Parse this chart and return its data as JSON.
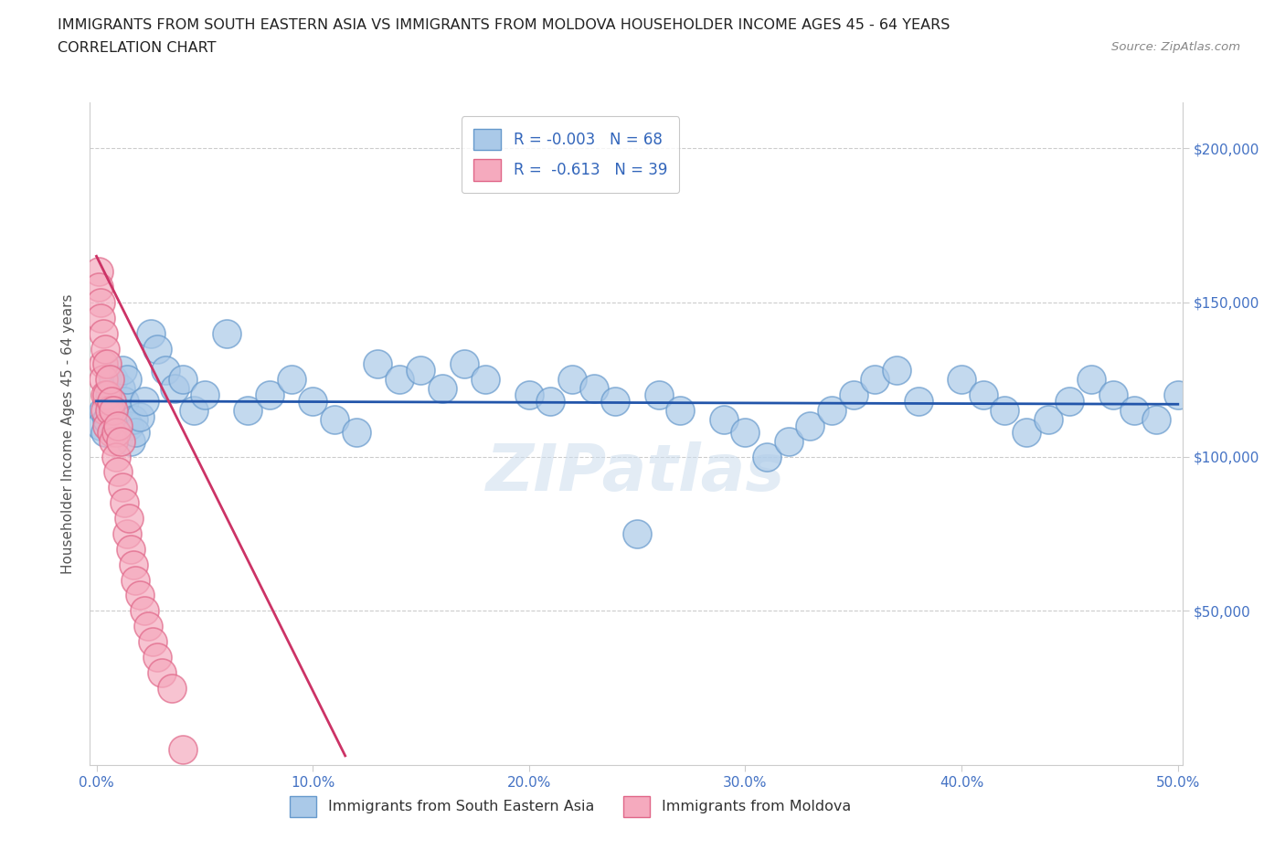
{
  "title_line1": "IMMIGRANTS FROM SOUTH EASTERN ASIA VS IMMIGRANTS FROM MOLDOVA HOUSEHOLDER INCOME AGES 45 - 64 YEARS",
  "title_line2": "CORRELATION CHART",
  "source": "Source: ZipAtlas.com",
  "ylabel": "Householder Income Ages 45 - 64 years",
  "xlim": [
    -0.003,
    0.502
  ],
  "ylim": [
    0,
    215000
  ],
  "yticks": [
    0,
    50000,
    100000,
    150000,
    200000
  ],
  "ytick_labels": [
    "",
    "$50,000",
    "$100,000",
    "$150,000",
    "$200,000"
  ],
  "xticks": [
    0.0,
    0.1,
    0.2,
    0.3,
    0.4,
    0.5
  ],
  "xtick_labels": [
    "0.0%",
    "10.0%",
    "20.0%",
    "30.0%",
    "40.0%",
    "50.0%"
  ],
  "blue_color": "#aac9e8",
  "pink_color": "#f5aabe",
  "blue_edge": "#6699cc",
  "pink_edge": "#e06688",
  "blue_line_color": "#2255aa",
  "pink_line_color": "#cc3366",
  "legend_blue_label_r": "R = -0.003",
  "legend_blue_label_n": "N = 68",
  "legend_pink_label_r": "R =  -0.613",
  "legend_pink_label_n": "N = 39",
  "watermark": "ZIPatlas",
  "blue_x": [
    0.002,
    0.003,
    0.004,
    0.005,
    0.006,
    0.007,
    0.008,
    0.009,
    0.01,
    0.011,
    0.012,
    0.013,
    0.014,
    0.015,
    0.016,
    0.017,
    0.018,
    0.02,
    0.022,
    0.025,
    0.028,
    0.032,
    0.036,
    0.04,
    0.045,
    0.05,
    0.06,
    0.07,
    0.08,
    0.09,
    0.1,
    0.11,
    0.12,
    0.13,
    0.14,
    0.15,
    0.16,
    0.17,
    0.18,
    0.2,
    0.21,
    0.22,
    0.23,
    0.24,
    0.25,
    0.26,
    0.27,
    0.29,
    0.3,
    0.31,
    0.32,
    0.33,
    0.34,
    0.35,
    0.36,
    0.37,
    0.38,
    0.4,
    0.41,
    0.42,
    0.43,
    0.44,
    0.45,
    0.46,
    0.47,
    0.48,
    0.49,
    0.5
  ],
  "blue_y": [
    110000,
    115000,
    108000,
    112000,
    120000,
    118000,
    125000,
    110000,
    115000,
    122000,
    128000,
    118000,
    125000,
    110000,
    105000,
    112000,
    108000,
    113000,
    118000,
    140000,
    135000,
    128000,
    122000,
    125000,
    115000,
    120000,
    140000,
    115000,
    120000,
    125000,
    118000,
    112000,
    108000,
    130000,
    125000,
    128000,
    122000,
    130000,
    125000,
    120000,
    118000,
    125000,
    122000,
    118000,
    75000,
    120000,
    115000,
    112000,
    108000,
    100000,
    105000,
    110000,
    115000,
    120000,
    125000,
    128000,
    118000,
    125000,
    120000,
    115000,
    108000,
    112000,
    118000,
    125000,
    120000,
    115000,
    112000,
    120000
  ],
  "pink_x": [
    0.001,
    0.001,
    0.002,
    0.002,
    0.003,
    0.003,
    0.003,
    0.004,
    0.004,
    0.004,
    0.005,
    0.005,
    0.005,
    0.006,
    0.006,
    0.007,
    0.007,
    0.008,
    0.008,
    0.009,
    0.009,
    0.01,
    0.01,
    0.011,
    0.012,
    0.013,
    0.014,
    0.015,
    0.016,
    0.017,
    0.018,
    0.02,
    0.022,
    0.024,
    0.026,
    0.028,
    0.03,
    0.035,
    0.04
  ],
  "pink_y": [
    160000,
    155000,
    150000,
    145000,
    130000,
    140000,
    125000,
    135000,
    120000,
    115000,
    130000,
    120000,
    110000,
    125000,
    115000,
    118000,
    108000,
    115000,
    105000,
    108000,
    100000,
    110000,
    95000,
    105000,
    90000,
    85000,
    75000,
    80000,
    70000,
    65000,
    60000,
    55000,
    50000,
    45000,
    40000,
    35000,
    30000,
    25000,
    5000
  ],
  "blue_trend_x": [
    0.0,
    0.5
  ],
  "blue_trend_y": [
    118000,
    117000
  ],
  "pink_trend_x": [
    0.0,
    0.115
  ],
  "pink_trend_y": [
    165000,
    3000
  ]
}
